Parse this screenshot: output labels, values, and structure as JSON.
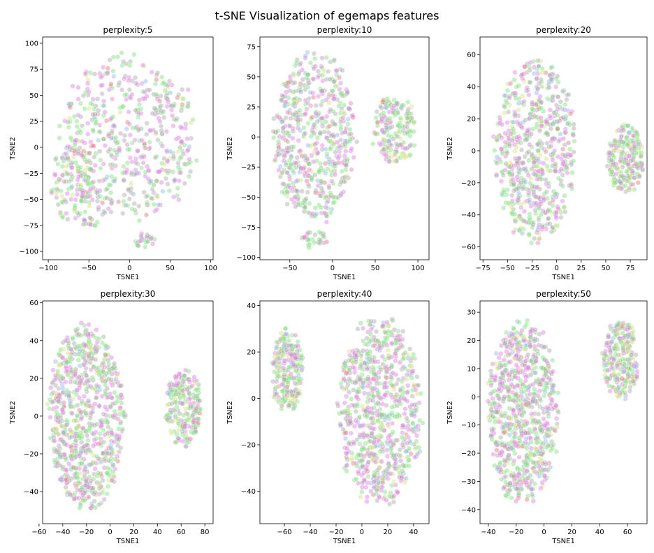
{
  "figure": {
    "title": "t-SNE Visualization of egemaps features"
  },
  "colors": [
    "#7fe07f",
    "#e07fe0",
    "#a9a9a9",
    "#d6df7a",
    "#8fb8ea",
    "#e47777"
  ],
  "chart_data": [
    {
      "type": "scatter",
      "title": "perplexity:5",
      "xlabel": "TSNE1",
      "ylabel": "TSNE2",
      "xlim": [
        -107,
        103
      ],
      "ylim": [
        -108,
        106
      ],
      "xticks": [
        -100,
        -50,
        0,
        50,
        100
      ],
      "yticks": [
        -100,
        -75,
        -50,
        -25,
        0,
        25,
        50,
        75,
        100
      ],
      "grid": false,
      "legend": "none",
      "clusters": [
        {
          "cx": 0,
          "cy": 10,
          "rx": 88,
          "ry": 85,
          "n": 520,
          "mix": [
            0.3,
            0.3,
            0.25,
            0.07,
            0.05,
            0.03
          ]
        },
        {
          "cx": -70,
          "cy": -35,
          "rx": 30,
          "ry": 38,
          "n": 130,
          "mix": [
            0.4,
            0.25,
            0.2,
            0.1,
            0.03,
            0.02
          ]
        },
        {
          "cx": 20,
          "cy": -90,
          "rx": 14,
          "ry": 9,
          "n": 25,
          "mix": [
            0.4,
            0.25,
            0.3,
            0.03,
            0.01,
            0.01
          ]
        },
        {
          "cx": -48,
          "cy": -72,
          "rx": 12,
          "ry": 5,
          "n": 15,
          "mix": [
            0.3,
            0.2,
            0.25,
            0.2,
            0.03,
            0.02
          ]
        }
      ]
    },
    {
      "type": "scatter",
      "title": "perplexity:10",
      "xlabel": "TSNE1",
      "ylabel": "TSNE2",
      "xlim": [
        -85,
        113
      ],
      "ylim": [
        -102,
        83
      ],
      "xticks": [
        -50,
        0,
        50,
        100
      ],
      "yticks": [
        -100,
        -75,
        -50,
        -25,
        0,
        25,
        50,
        75
      ],
      "grid": false,
      "legend": "none",
      "clusters": [
        {
          "cx": -22,
          "cy": 0,
          "rx": 52,
          "ry": 75,
          "n": 560,
          "mix": [
            0.3,
            0.3,
            0.25,
            0.07,
            0.05,
            0.03
          ]
        },
        {
          "cx": 72,
          "cy": 5,
          "rx": 30,
          "ry": 30,
          "n": 180,
          "mix": [
            0.4,
            0.2,
            0.2,
            0.15,
            0.03,
            0.02
          ]
        },
        {
          "cx": -22,
          "cy": -85,
          "rx": 16,
          "ry": 8,
          "n": 30,
          "mix": [
            0.35,
            0.3,
            0.3,
            0.03,
            0.01,
            0.01
          ]
        }
      ]
    },
    {
      "type": "scatter",
      "title": "perplexity:20",
      "xlabel": "TSNE1",
      "ylabel": "TSNE2",
      "xlim": [
        -78,
        92
      ],
      "ylim": [
        -68,
        71
      ],
      "xticks": [
        -75,
        -50,
        -25,
        0,
        25,
        50,
        75
      ],
      "yticks": [
        -60,
        -40,
        -20,
        0,
        20,
        40,
        60
      ],
      "grid": false,
      "legend": "none",
      "clusters": [
        {
          "cx": -22,
          "cy": 0,
          "rx": 44,
          "ry": 60,
          "n": 620,
          "mix": [
            0.3,
            0.3,
            0.25,
            0.07,
            0.05,
            0.03
          ]
        },
        {
          "cx": 70,
          "cy": -5,
          "rx": 20,
          "ry": 24,
          "n": 220,
          "mix": [
            0.4,
            0.22,
            0.18,
            0.15,
            0.03,
            0.02
          ]
        }
      ]
    },
    {
      "type": "scatter",
      "title": "perplexity:30",
      "xlabel": "TSNE1",
      "ylabel": "TSNE2",
      "xlim": [
        -57,
        87
      ],
      "ylim": [
        -57,
        61
      ],
      "xticks": [
        -60,
        -40,
        -20,
        0,
        20,
        40,
        60,
        80
      ],
      "yticks": [
        -40,
        -20,
        0,
        20,
        40,
        60
      ],
      "grid": false,
      "legend": "none",
      "clusters": [
        {
          "cx": -20,
          "cy": 0,
          "rx": 34,
          "ry": 52,
          "n": 760,
          "mix": [
            0.3,
            0.3,
            0.25,
            0.07,
            0.05,
            0.03
          ]
        },
        {
          "cx": 62,
          "cy": 5,
          "rx": 16,
          "ry": 22,
          "n": 220,
          "mix": [
            0.4,
            0.22,
            0.18,
            0.15,
            0.03,
            0.02
          ]
        }
      ]
    },
    {
      "type": "scatter",
      "title": "perplexity:40",
      "xlabel": "TSNE1",
      "ylabel": "TSNE2",
      "xlim": [
        -79,
        52
      ],
      "ylim": [
        -54,
        42
      ],
      "xticks": [
        -60,
        -40,
        -20,
        0,
        20,
        40
      ],
      "yticks": [
        -40,
        -20,
        0,
        20,
        40
      ],
      "grid": false,
      "legend": "none",
      "clusters": [
        {
          "cx": 14,
          "cy": -6,
          "rx": 34,
          "ry": 43,
          "n": 760,
          "mix": [
            0.3,
            0.3,
            0.25,
            0.07,
            0.05,
            0.03
          ]
        },
        {
          "cx": -58,
          "cy": 12,
          "rx": 13,
          "ry": 19,
          "n": 230,
          "mix": [
            0.4,
            0.22,
            0.18,
            0.15,
            0.03,
            0.02
          ]
        }
      ]
    },
    {
      "type": "scatter",
      "title": "perplexity:50",
      "xlabel": "TSNE1",
      "ylabel": "TSNE2",
      "xlim": [
        -46,
        74
      ],
      "ylim": [
        -45,
        34
      ],
      "xticks": [
        -40,
        -20,
        0,
        20,
        40,
        60
      ],
      "yticks": [
        -40,
        -30,
        -20,
        -10,
        0,
        10,
        20,
        30
      ],
      "grid": false,
      "legend": "none",
      "clusters": [
        {
          "cx": -15,
          "cy": -5,
          "rx": 27,
          "ry": 34,
          "n": 760,
          "mix": [
            0.3,
            0.3,
            0.25,
            0.07,
            0.05,
            0.03
          ]
        },
        {
          "cx": 55,
          "cy": 13,
          "rx": 14,
          "ry": 15,
          "n": 230,
          "mix": [
            0.4,
            0.22,
            0.18,
            0.15,
            0.03,
            0.02
          ]
        }
      ]
    }
  ]
}
